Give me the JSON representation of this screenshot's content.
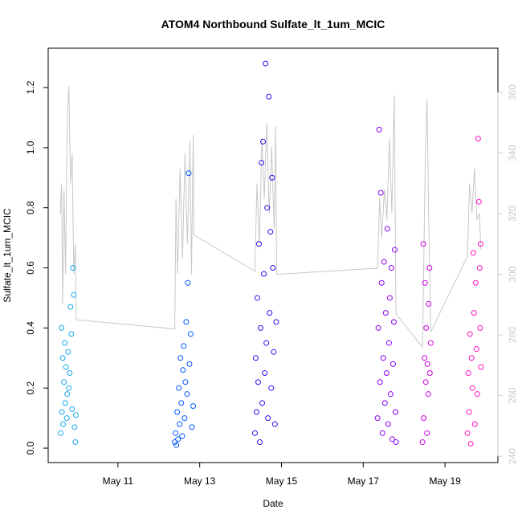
{
  "chart_data": {
    "type": "scatter",
    "title": "ATOM4 Northbound Sulfate_lt_1um_MCIC",
    "x_label": "Date",
    "y_label": "Sulfate_lt_1um_MCIC",
    "xlim": [
      9.294,
      20.294
    ],
    "xticks": [
      {
        "value": 11,
        "label": "May 11"
      },
      {
        "value": 13,
        "label": "May 13"
      },
      {
        "value": 15,
        "label": "May 15"
      },
      {
        "value": 17,
        "label": "May 17"
      },
      {
        "value": 19,
        "label": "May 19"
      }
    ],
    "ylim": [
      -0.048,
      1.331
    ],
    "yticks": [
      {
        "value": 0,
        "label": "0.0"
      },
      {
        "value": 0.2,
        "label": "0.2"
      },
      {
        "value": 0.4,
        "label": "0.4"
      },
      {
        "value": 0.6,
        "label": "0.6"
      },
      {
        "value": 0.8,
        "label": "0.8"
      },
      {
        "value": 1,
        "label": "1.0"
      },
      {
        "value": 1.2,
        "label": "1.2"
      }
    ],
    "y2lim": [
      237.9,
      374.6
    ],
    "y2ticks": [
      240,
      260,
      280,
      300,
      320,
      340,
      360
    ],
    "y2_color": "#c8c8c8",
    "series": [
      {
        "type": "line",
        "axis": "y2",
        "color": "#c8c8c8",
        "x": [
          9.59,
          9.62,
          9.65,
          9.68,
          9.72,
          9.76,
          9.8,
          9.84,
          9.88,
          9.92,
          9.96,
          9.98,
          12.39,
          12.42,
          12.46,
          12.52,
          12.58,
          12.64,
          12.7,
          12.76,
          12.8,
          12.84,
          12.86,
          14.35,
          14.4,
          14.46,
          14.52,
          14.58,
          14.64,
          14.7,
          14.76,
          14.82,
          14.86,
          14.88,
          17.35,
          17.4,
          17.45,
          17.52,
          17.58,
          17.64,
          17.7,
          17.76,
          17.8,
          18.45,
          18.52,
          18.56,
          18.6,
          18.65,
          19.55,
          19.6,
          19.66,
          19.72,
          19.78,
          19.84,
          19.88
        ],
        "values": [
          320,
          330,
          290,
          328,
          300,
          352,
          362,
          330,
          340,
          300,
          310,
          285,
          282,
          325,
          300,
          335,
          305,
          340,
          310,
          344,
          300,
          346,
          313,
          301,
          330,
          310,
          345,
          325,
          350,
          320,
          342,
          315,
          349,
          300,
          302,
          325,
          312,
          328,
          318,
          345,
          320,
          359,
          287,
          276,
          340,
          358,
          320,
          281,
          306,
          330,
          320,
          335,
          318,
          320,
          308
        ]
      },
      {
        "type": "scatter",
        "color": "#19a8f0",
        "x": [
          9.6,
          9.62,
          9.63,
          9.65,
          9.66,
          9.68,
          9.7,
          9.71,
          9.73,
          9.75,
          9.76,
          9.78,
          9.8,
          9.82,
          9.84,
          9.86,
          9.88,
          9.9,
          9.92,
          9.94,
          9.96,
          9.97
        ],
        "values": [
          0.05,
          0.4,
          0.12,
          0.3,
          0.08,
          0.22,
          0.35,
          0.15,
          0.27,
          0.1,
          0.18,
          0.32,
          0.2,
          0.25,
          0.47,
          0.38,
          0.13,
          0.6,
          0.51,
          0.07,
          0.02,
          0.11
        ]
      },
      {
        "type": "scatter",
        "color": "#0058ff",
        "x": [
          12.39,
          12.41,
          12.43,
          12.45,
          12.47,
          12.49,
          12.51,
          12.53,
          12.55,
          12.57,
          12.59,
          12.61,
          12.63,
          12.65,
          12.67,
          12.69,
          12.71,
          12.73,
          12.75,
          12.78,
          12.81,
          12.84
        ],
        "values": [
          0.02,
          0.05,
          0.01,
          0.12,
          0.03,
          0.2,
          0.08,
          0.3,
          0.15,
          0.04,
          0.26,
          0.34,
          0.1,
          0.22,
          0.42,
          0.18,
          0.55,
          0.915,
          0.28,
          0.38,
          0.07,
          0.14
        ]
      },
      {
        "type": "scatter",
        "color": "#2a10f0",
        "x": [
          14.35,
          14.37,
          14.39,
          14.41,
          14.43,
          14.45,
          14.47,
          14.49,
          14.51,
          14.53,
          14.55,
          14.57,
          14.59,
          14.61,
          14.63,
          14.65,
          14.67,
          14.69,
          14.71,
          14.73,
          14.75,
          14.77,
          14.79,
          14.81,
          14.84,
          14.87
        ],
        "values": [
          0.05,
          0.3,
          0.12,
          0.5,
          0.22,
          0.68,
          0.02,
          0.4,
          0.95,
          0.15,
          1.02,
          0.58,
          0.25,
          1.28,
          0.35,
          0.8,
          0.1,
          1.17,
          0.45,
          0.72,
          0.2,
          0.9,
          0.6,
          0.32,
          0.08,
          0.42
        ]
      },
      {
        "type": "scatter",
        "color": "#8a00f0",
        "x": [
          17.35,
          17.37,
          17.39,
          17.41,
          17.43,
          17.45,
          17.47,
          17.49,
          17.51,
          17.53,
          17.55,
          17.57,
          17.59,
          17.61,
          17.63,
          17.65,
          17.67,
          17.69,
          17.71,
          17.73,
          17.75,
          17.77,
          17.79,
          17.8
        ],
        "values": [
          0.1,
          0.4,
          1.06,
          0.22,
          0.85,
          0.55,
          0.05,
          0.3,
          0.62,
          0.15,
          0.45,
          0.25,
          0.73,
          0.08,
          0.35,
          0.5,
          0.18,
          0.6,
          0.03,
          0.28,
          0.42,
          0.66,
          0.12,
          0.02
        ]
      },
      {
        "type": "scatter",
        "color": "#cc00e0",
        "x": [
          18.45,
          18.47,
          18.48,
          18.5,
          18.51,
          18.53,
          18.54,
          18.56,
          18.57,
          18.59,
          18.6,
          18.62,
          18.63,
          18.65
        ],
        "values": [
          0.02,
          0.68,
          0.1,
          0.3,
          0.55,
          0.22,
          0.4,
          0.05,
          0.28,
          0.18,
          0.48,
          0.6,
          0.25,
          0.35
        ]
      },
      {
        "type": "scatter",
        "color": "#ff10c0",
        "x": [
          19.55,
          19.57,
          19.59,
          19.61,
          19.63,
          19.65,
          19.67,
          19.69,
          19.71,
          19.73,
          19.75,
          19.77,
          19.79,
          19.81,
          19.83,
          19.85,
          19.86,
          19.87,
          19.88
        ],
        "values": [
          0.05,
          0.25,
          0.12,
          0.38,
          0.015,
          0.3,
          0.2,
          0.65,
          0.45,
          0.08,
          0.55,
          0.33,
          0.18,
          1.03,
          0.82,
          0.6,
          0.4,
          0.68,
          0.27
        ]
      }
    ]
  }
}
